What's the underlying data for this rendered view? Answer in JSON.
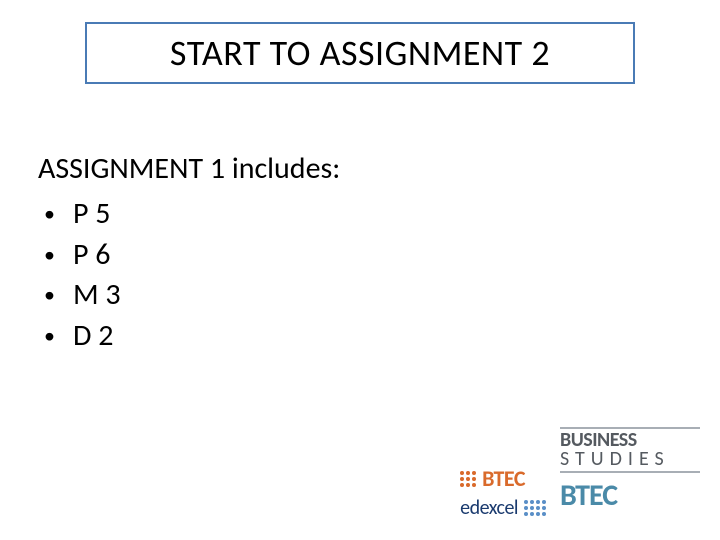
{
  "title_box": {
    "text": "START TO ASSIGNMENT 2",
    "border_color": "#4a7bb5"
  },
  "subtitle": "ASSIGNMENT 1 includes:",
  "bullets": [
    "P 5",
    "P 6",
    "M 3",
    "D 2"
  ],
  "logos": {
    "btec_orange": {
      "text": "BTEC",
      "color": "#d96a2b"
    },
    "edexcel": {
      "text": "edexcel",
      "color": "#1a3a6e",
      "dot_color": "#5a8fc7"
    },
    "business_studies": {
      "line1": "BUSINESS",
      "line2": "STUDIES",
      "color": "#555a60",
      "divider_color": "#a8aeb5"
    },
    "btec_blue": {
      "text": "BTEC",
      "color": "#4a8aa8"
    }
  }
}
